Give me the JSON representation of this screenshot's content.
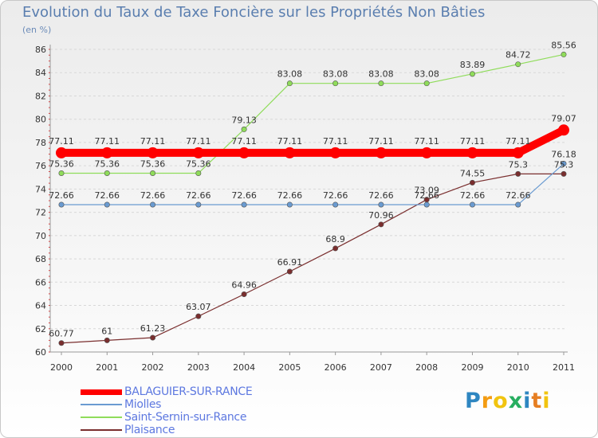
{
  "header": {
    "title": "Evolution du Taux de Taxe Foncière sur les Propriétés Non Bâties",
    "unit": "(en %)"
  },
  "logo": {
    "letters": [
      "P",
      "r",
      "o",
      "x",
      "i",
      "t",
      "i"
    ],
    "colors": [
      "#2e86c1",
      "#f39c12",
      "#f1c40f",
      "#27ae60",
      "#2e86c1",
      "#e67e22",
      "#f1c40f"
    ],
    "brand_lettering": "Proxiti"
  },
  "chart_data": {
    "type": "line",
    "title": "Evolution du Taux de Taxe Foncière sur les Propriétés Non Bâties",
    "ylabel": "(en %)",
    "xlabel": "",
    "ylim": [
      60,
      86
    ],
    "yticks": [
      60,
      62,
      64,
      66,
      68,
      70,
      72,
      74,
      76,
      78,
      80,
      82,
      84,
      86
    ],
    "x": [
      2000,
      2001,
      2002,
      2003,
      2004,
      2005,
      2006,
      2007,
      2008,
      2009,
      2010,
      2011
    ],
    "grid": "horizontal dashed",
    "legend_position": "bottom-left",
    "series": [
      {
        "name": "BALAGUIER-SUR-RANCE",
        "color": "#ff0000",
        "values": [
          77.11,
          77.11,
          77.11,
          77.11,
          77.11,
          77.11,
          77.11,
          77.11,
          77.11,
          77.11,
          77.11,
          79.07
        ],
        "labels": [
          "77.11",
          "77.11",
          "77.11",
          "77.11",
          "77.11",
          "77.11",
          "77.11",
          "77.11",
          "77.11",
          "77.11",
          "77.11",
          "79.07"
        ]
      },
      {
        "name": "Miolles",
        "color": "#6a9bd1",
        "values": [
          72.66,
          72.66,
          72.66,
          72.66,
          72.66,
          72.66,
          72.66,
          72.66,
          72.66,
          72.66,
          72.66,
          76.18
        ],
        "labels": [
          "72.66",
          "72.66",
          "72.66",
          "72.66",
          "72.66",
          "72.66",
          "72.66",
          "72.66",
          "72.66",
          "72.66",
          "72.66",
          "76.18"
        ]
      },
      {
        "name": "Saint-Sernin-sur-Rance",
        "color": "#8fdc5a",
        "values": [
          75.36,
          75.36,
          75.36,
          75.36,
          79.13,
          83.08,
          83.08,
          83.08,
          83.08,
          83.89,
          84.72,
          85.56
        ],
        "labels": [
          "75.36",
          "75.36",
          "75.36",
          "75.36",
          "79.13",
          "83.08",
          "83.08",
          "83.08",
          "83.08",
          "83.89",
          "84.72",
          "85.56"
        ]
      },
      {
        "name": "Plaisance",
        "color": "#7a2e2e",
        "values": [
          60.77,
          61,
          61.23,
          63.07,
          64.96,
          66.91,
          68.9,
          70.96,
          73.09,
          74.55,
          75.3,
          75.3
        ],
        "labels": [
          "60.77",
          "61",
          "61.23",
          "63.07",
          "64.96",
          "66.91",
          "68.9",
          "70.96",
          "73.09",
          "74.55",
          "75.3",
          "75.3"
        ]
      }
    ]
  }
}
